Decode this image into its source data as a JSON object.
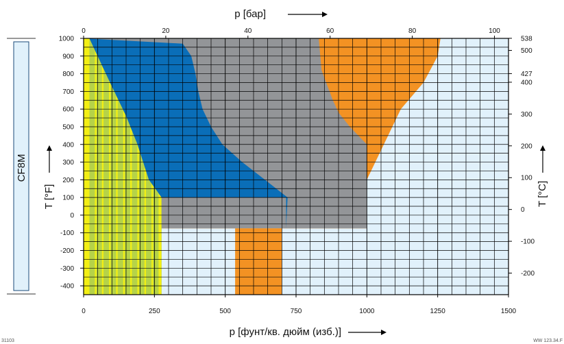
{
  "chart_data": {
    "type": "area",
    "material_label": "CF8M",
    "x_bottom": {
      "label": "p [фунт/кв. дюйм (изб.)]",
      "range": [
        0,
        1500
      ],
      "ticks": [
        0,
        250,
        500,
        750,
        1000,
        1250,
        1500
      ]
    },
    "x_top": {
      "label": "p [бар]",
      "range": [
        0,
        103.4
      ],
      "ticks": [
        0,
        20,
        40,
        60,
        80,
        100
      ]
    },
    "y_left": {
      "label": "T [°F]",
      "range": [
        -450,
        1000
      ],
      "ticks": [
        -400,
        -300,
        -200,
        -100,
        0,
        100,
        200,
        300,
        400,
        500,
        600,
        700,
        800,
        900,
        1000
      ]
    },
    "y_right": {
      "label": "T [°C]",
      "ticks": [
        -200,
        -100,
        0,
        100,
        200,
        300,
        400,
        427,
        500,
        538
      ]
    },
    "grid": true,
    "colors": {
      "yellow": "#f3ef14",
      "blue": "#0a6eb8",
      "gray": "#939598",
      "orange": "#f39223",
      "lightblue": "#e1f1fb",
      "green": "#b6d348"
    },
    "regions": [
      {
        "color": "lightblue",
        "points": [
          [
            0,
            -450
          ],
          [
            1500,
            -450
          ],
          [
            1500,
            1000
          ],
          [
            0,
            1000
          ]
        ]
      },
      {
        "color": "orange",
        "points": [
          [
            0,
            -75
          ],
          [
            1000,
            -75
          ],
          [
            1000,
            200
          ],
          [
            1120,
            600
          ],
          [
            1200,
            750
          ],
          [
            1250,
            900
          ],
          [
            1260,
            1000
          ],
          [
            0,
            1000
          ]
        ]
      },
      {
        "color": "gray",
        "points": [
          [
            0,
            -75
          ],
          [
            1000,
            -75
          ],
          [
            1000,
            400
          ],
          [
            940,
            500
          ],
          [
            900,
            580
          ],
          [
            880,
            650
          ],
          [
            840,
            820
          ],
          [
            830,
            1000
          ],
          [
            0,
            1000
          ]
        ]
      },
      {
        "color": "blue",
        "points": [
          [
            0,
            -450
          ],
          [
            275,
            -450
          ],
          [
            275,
            100
          ],
          [
            715,
            100
          ],
          [
            715,
            -75
          ],
          [
            1000,
            -75
          ],
          [
            1000,
            -75
          ],
          [
            715,
            -75
          ],
          [
            720,
            100
          ],
          [
            640,
            200
          ],
          [
            560,
            300
          ],
          [
            490,
            400
          ],
          [
            450,
            500
          ],
          [
            420,
            600
          ],
          [
            405,
            700
          ],
          [
            395,
            800
          ],
          [
            380,
            900
          ],
          [
            350,
            970
          ],
          [
            0,
            1000
          ]
        ]
      },
      {
        "color": "orange",
        "points": [
          [
            535,
            -450
          ],
          [
            700,
            -450
          ],
          [
            700,
            -75
          ],
          [
            535,
            -75
          ]
        ]
      },
      {
        "color": "yellow",
        "points": [
          [
            0,
            -450
          ],
          [
            275,
            -450
          ],
          [
            275,
            100
          ],
          [
            230,
            200
          ],
          [
            190,
            400
          ],
          [
            150,
            560
          ],
          [
            90,
            760
          ],
          [
            20,
            1000
          ],
          [
            0,
            1000
          ]
        ]
      }
    ],
    "yellow_stripes": [
      30,
      55,
      80,
      105,
      130,
      155,
      180,
      205,
      230,
      255
    ],
    "corner_labels": [
      "31103",
      "WW 123.34.F"
    ]
  }
}
